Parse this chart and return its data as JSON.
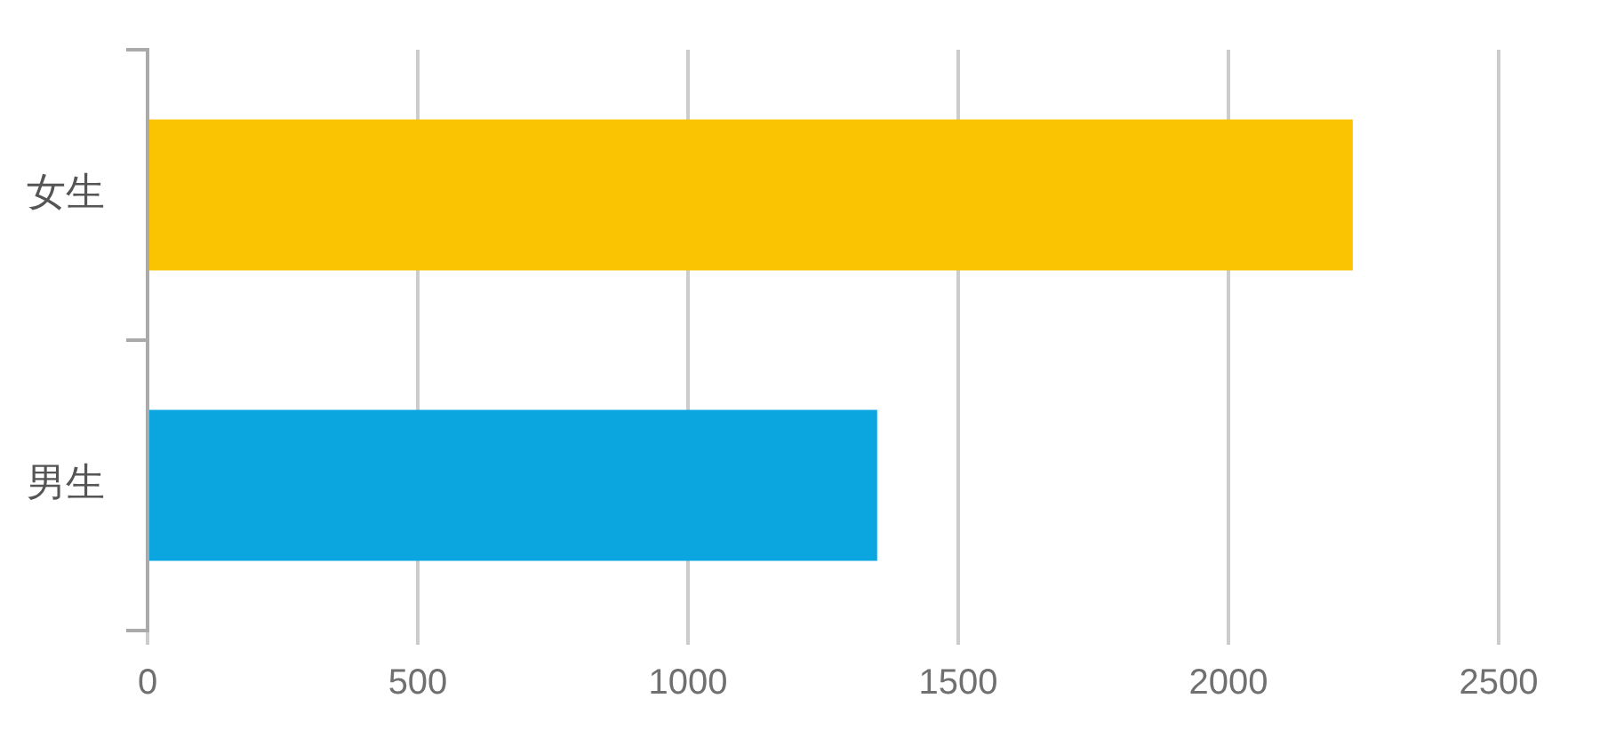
{
  "chart_data": {
    "type": "bar",
    "orientation": "horizontal",
    "categories": [
      "女生",
      "男生"
    ],
    "values": [
      2230,
      1350
    ],
    "colors": [
      "#fbc402",
      "#0ba5e0"
    ],
    "xlim": [
      0,
      2500
    ],
    "xticks": [
      0,
      500,
      1000,
      1500,
      2000,
      2500
    ],
    "grid": "x"
  }
}
